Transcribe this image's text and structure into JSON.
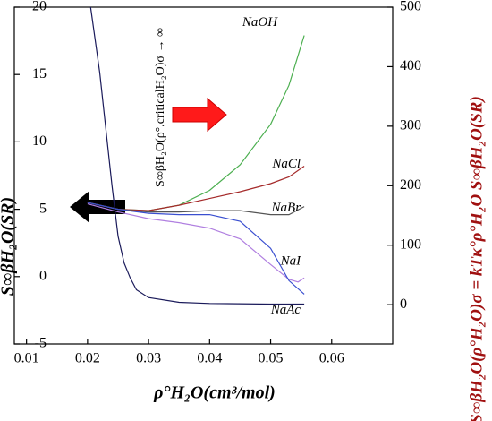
{
  "chart_data": {
    "type": "line",
    "xlabel": "ρ°H₂O(cm³/mol)",
    "ylabel": "S∞βH₂O(SR)",
    "y2label": "S∞βH₂O(ρ°H₂O)σ = kTκ°ρ°H₂O S∞βH₂O(SR)",
    "annotations": [
      "S∞βH₂O(ρ°,criticalH₂O)σ → ∞"
    ],
    "xlim": [
      0.008,
      0.07
    ],
    "xticks": [
      0.01,
      0.02,
      0.03,
      0.04,
      0.05,
      0.06
    ],
    "ylim": [
      -5,
      20
    ],
    "yticks": [
      -5,
      0,
      5,
      10,
      15,
      20
    ],
    "y2lim": [
      -66,
      500
    ],
    "y2ticks": [
      0,
      100,
      200,
      300,
      400,
      500
    ],
    "series": [
      {
        "name": "NaOH",
        "color": "#4caf50",
        "x": [
          0.02,
          0.025,
          0.03,
          0.035,
          0.04,
          0.045,
          0.05,
          0.053,
          0.0555
        ],
        "values": [
          5.5,
          5.0,
          4.9,
          5.3,
          6.4,
          8.3,
          11.3,
          14.2,
          17.9
        ]
      },
      {
        "name": "NaCl",
        "color": "#a52a2a",
        "x": [
          0.02,
          0.025,
          0.03,
          0.035,
          0.04,
          0.045,
          0.05,
          0.053,
          0.0555
        ],
        "values": [
          5.5,
          5.0,
          4.9,
          5.3,
          5.8,
          6.3,
          6.9,
          7.4,
          8.2
        ]
      },
      {
        "name": "NaBr",
        "color": "#555555",
        "x": [
          0.02,
          0.025,
          0.03,
          0.035,
          0.04,
          0.045,
          0.05,
          0.053,
          0.0555
        ],
        "values": [
          5.5,
          5.0,
          4.8,
          4.8,
          4.9,
          4.9,
          4.6,
          4.6,
          5.2
        ]
      },
      {
        "name": "NaI",
        "color": "#b07fe0",
        "x": [
          0.02,
          0.025,
          0.03,
          0.035,
          0.04,
          0.045,
          0.05,
          0.053,
          0.0545,
          0.0555
        ],
        "values": [
          5.4,
          4.8,
          4.3,
          4.0,
          3.6,
          2.8,
          0.9,
          -0.2,
          -0.4,
          -0.1
        ]
      },
      {
        "name": "NaAc",
        "color": "#3a4fd0",
        "x": [
          0.02,
          0.025,
          0.03,
          0.035,
          0.04,
          0.045,
          0.05,
          0.053,
          0.0555
        ],
        "values": [
          5.5,
          5.0,
          4.7,
          4.6,
          4.6,
          4.1,
          2.1,
          -0.3,
          -1.3
        ]
      },
      {
        "color": "#1a1a5a",
        "axis": "y2",
        "x": [
          0.0205,
          0.022,
          0.024,
          0.025,
          0.026,
          0.027,
          0.028,
          0.03,
          0.035,
          0.04,
          0.05,
          0.0555
        ],
        "values": [
          500,
          390,
          200,
          115,
          70,
          45,
          25,
          12,
          4,
          2,
          1,
          1
        ]
      }
    ]
  }
}
